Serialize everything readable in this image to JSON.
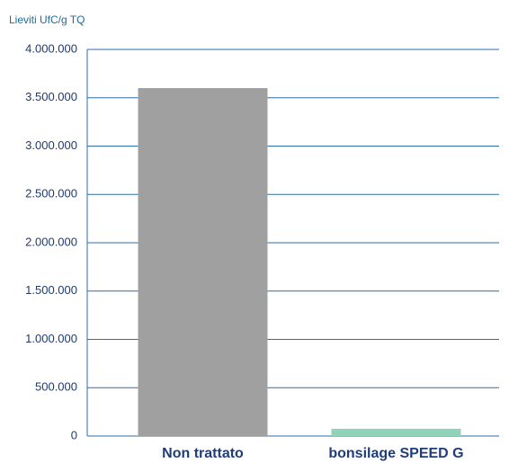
{
  "chart_data": {
    "type": "bar",
    "y_label": "Lieviti UfC/g TQ",
    "categories": [
      "Non trattato",
      "bonsilage SPEED G"
    ],
    "values": [
      3600000,
      75000
    ],
    "colors": [
      "#a0a0a0",
      "#8fd3b8"
    ],
    "ylim": [
      0,
      4000000
    ],
    "yticks": [
      0,
      {
        "value": 500000,
        "label": "500.000"
      },
      {
        "value": 1000000,
        "label": "1.000.000"
      },
      {
        "value": 1500000,
        "label": "1.500.000"
      },
      {
        "value": 2000000,
        "label": "2.000.000"
      },
      {
        "value": 2500000,
        "label": "2.500.000"
      },
      {
        "value": 3000000,
        "label": "3.000.000"
      },
      {
        "value": 3500000,
        "label": "3.500.000"
      },
      {
        "value": 4000000,
        "label": "4.000.000"
      }
    ],
    "grid": true
  }
}
